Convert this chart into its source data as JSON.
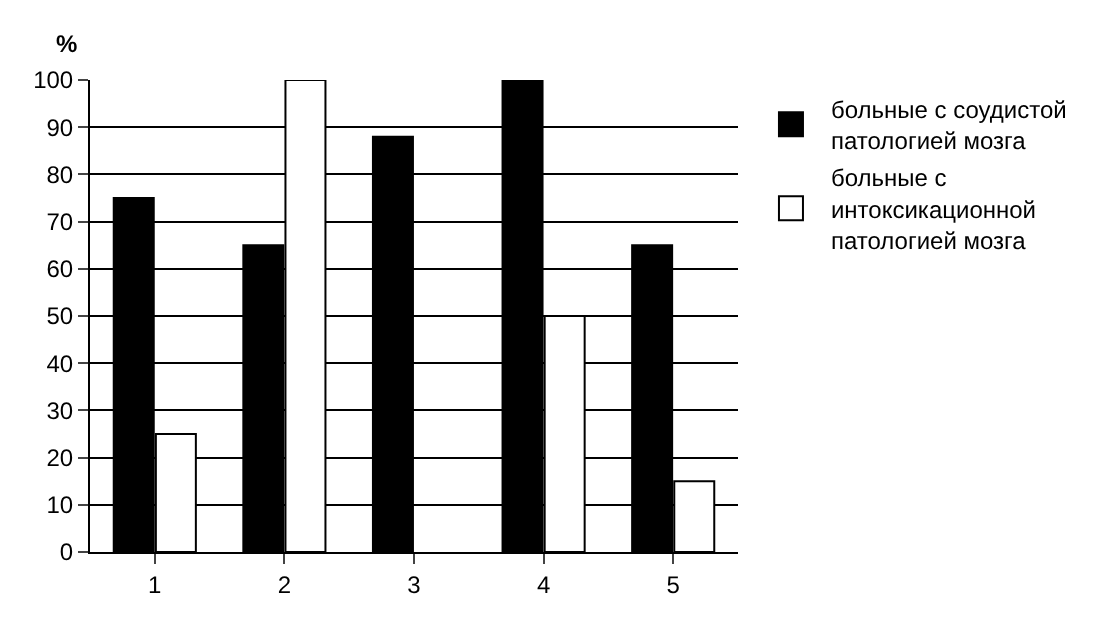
{
  "chart_data": {
    "type": "bar",
    "ylabel": "%",
    "categories": [
      "1",
      "2",
      "3",
      "4",
      "5"
    ],
    "series": [
      {
        "name": "больные с соудистой патологией мозга",
        "color": "#000000",
        "values": [
          75,
          65,
          88,
          100,
          65
        ]
      },
      {
        "name": "больные с интоксикационной патологией мозга",
        "color": "#ffffff",
        "values": [
          25,
          100,
          0,
          50,
          15
        ]
      }
    ],
    "ylim": [
      0,
      100
    ],
    "yticks": [
      0,
      10,
      20,
      30,
      40,
      50,
      60,
      70,
      80,
      90,
      100
    ],
    "grid": "y",
    "legend": "right"
  }
}
